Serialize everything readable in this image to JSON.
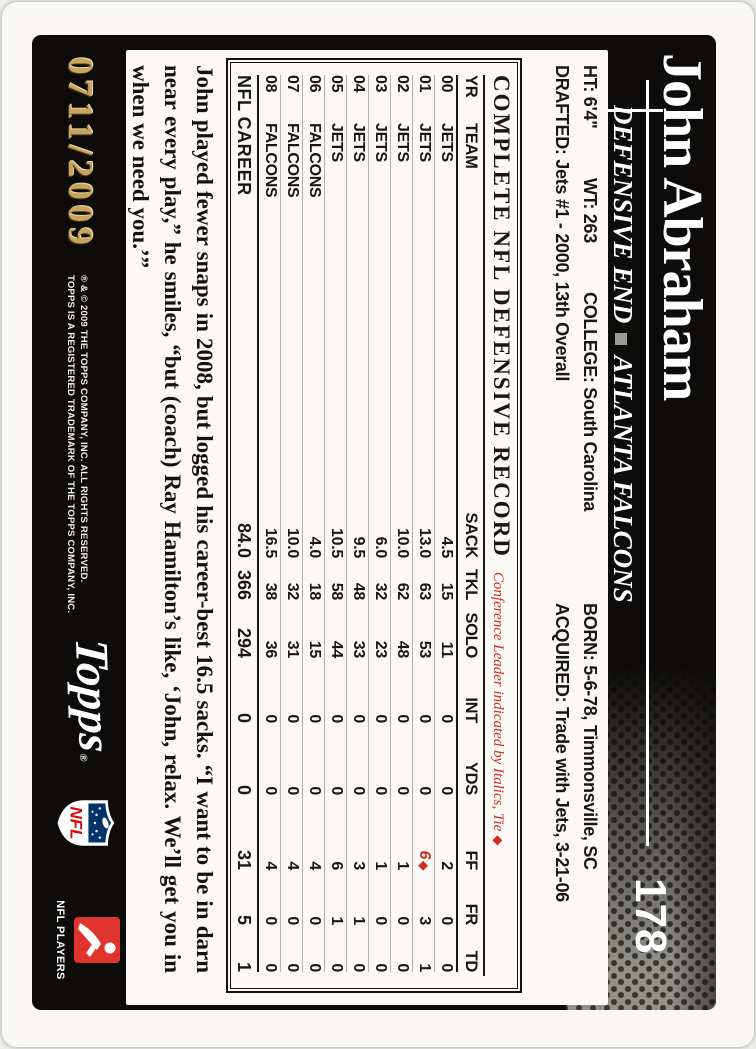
{
  "card": {
    "serial": "0711/2009",
    "number": "178",
    "player": "John Abraham",
    "position": "DEFENSIVE END",
    "team": "ATLANTA FALCONS",
    "bio": {
      "ht": "HT: 6'4\"",
      "wt": "WT: 263",
      "college": "COLLEGE: South Carolina",
      "born": "BORN: 5-6-78, Timmonsville, SC",
      "drafted": "DRAFTED: Jets #1 - 2000, 13th Overall",
      "acquired": "ACQUIRED: Trade with Jets, 3-21-06"
    },
    "table": {
      "title": "COMPLETE NFL DEFENSIVE RECORD",
      "legend": "Conference Leader indicated by Italics, Tie",
      "legend_symbol": "◆",
      "columns": [
        "YR",
        "TEAM",
        "SACK",
        "TKL",
        "SOLO",
        "INT",
        "YDS",
        "FF",
        "FR",
        "TD"
      ],
      "rows": [
        [
          "00",
          "JETS",
          "4.5",
          "15",
          "11",
          "0",
          "0",
          "2",
          "0",
          "0"
        ],
        [
          "01",
          "JETS",
          "13.0",
          "63",
          "53",
          "0",
          "0",
          {
            "text": "6",
            "leader": true,
            "tie": true
          },
          "3",
          "1"
        ],
        [
          "02",
          "JETS",
          "10.0",
          "62",
          "48",
          "0",
          "0",
          "1",
          "0",
          "0"
        ],
        [
          "03",
          "JETS",
          "6.0",
          "32",
          "23",
          "0",
          "0",
          "1",
          "0",
          "0"
        ],
        [
          "04",
          "JETS",
          "9.5",
          "48",
          "33",
          "0",
          "0",
          "3",
          "1",
          "0"
        ],
        [
          "05",
          "JETS",
          "10.5",
          "58",
          "44",
          "0",
          "0",
          "6",
          "1",
          "0"
        ],
        [
          "06",
          "FALCONS",
          "4.0",
          "18",
          "15",
          "0",
          "0",
          "4",
          "0",
          "0"
        ],
        [
          "07",
          "FALCONS",
          "10.0",
          "32",
          "31",
          "0",
          "0",
          "4",
          "0",
          "0"
        ],
        [
          "08",
          "FALCONS",
          "16.5",
          "38",
          "36",
          "0",
          "0",
          "4",
          "0",
          "0"
        ]
      ],
      "career_label": "NFL CAREER",
      "career": [
        "84.0",
        "366",
        "294",
        "0",
        "0",
        "31",
        "5",
        "1"
      ]
    },
    "paragraph": "John played fewer snaps in 2008, but logged his career-best 16.5 sacks. “I want to be in darn near every play,” he smiles, “but (coach) Ray Hamilton’s like, ‘John, relax. We’ll get you in when we need you.’”",
    "footer": {
      "copyright_line1": "® & © 2009 THE TOPPS COMPANY, INC. ALL RIGHTS RESERVED.",
      "copyright_line2": "TOPPS IS A REGISTERED TRADEMARK OF THE TOPPS COMPANY, INC.",
      "topps_text": "Topps",
      "topps_reg": "®",
      "nfl_shield_text": "NFL",
      "players_label": "NFL PLAYERS"
    },
    "colors": {
      "gold_foil": "#c7a55e",
      "legend_red": "#cf2d24",
      "shield_blue": "#013369",
      "shield_red": "#d50a0a",
      "players_red": "#df352c",
      "pebble_gray": "#93918c"
    }
  }
}
